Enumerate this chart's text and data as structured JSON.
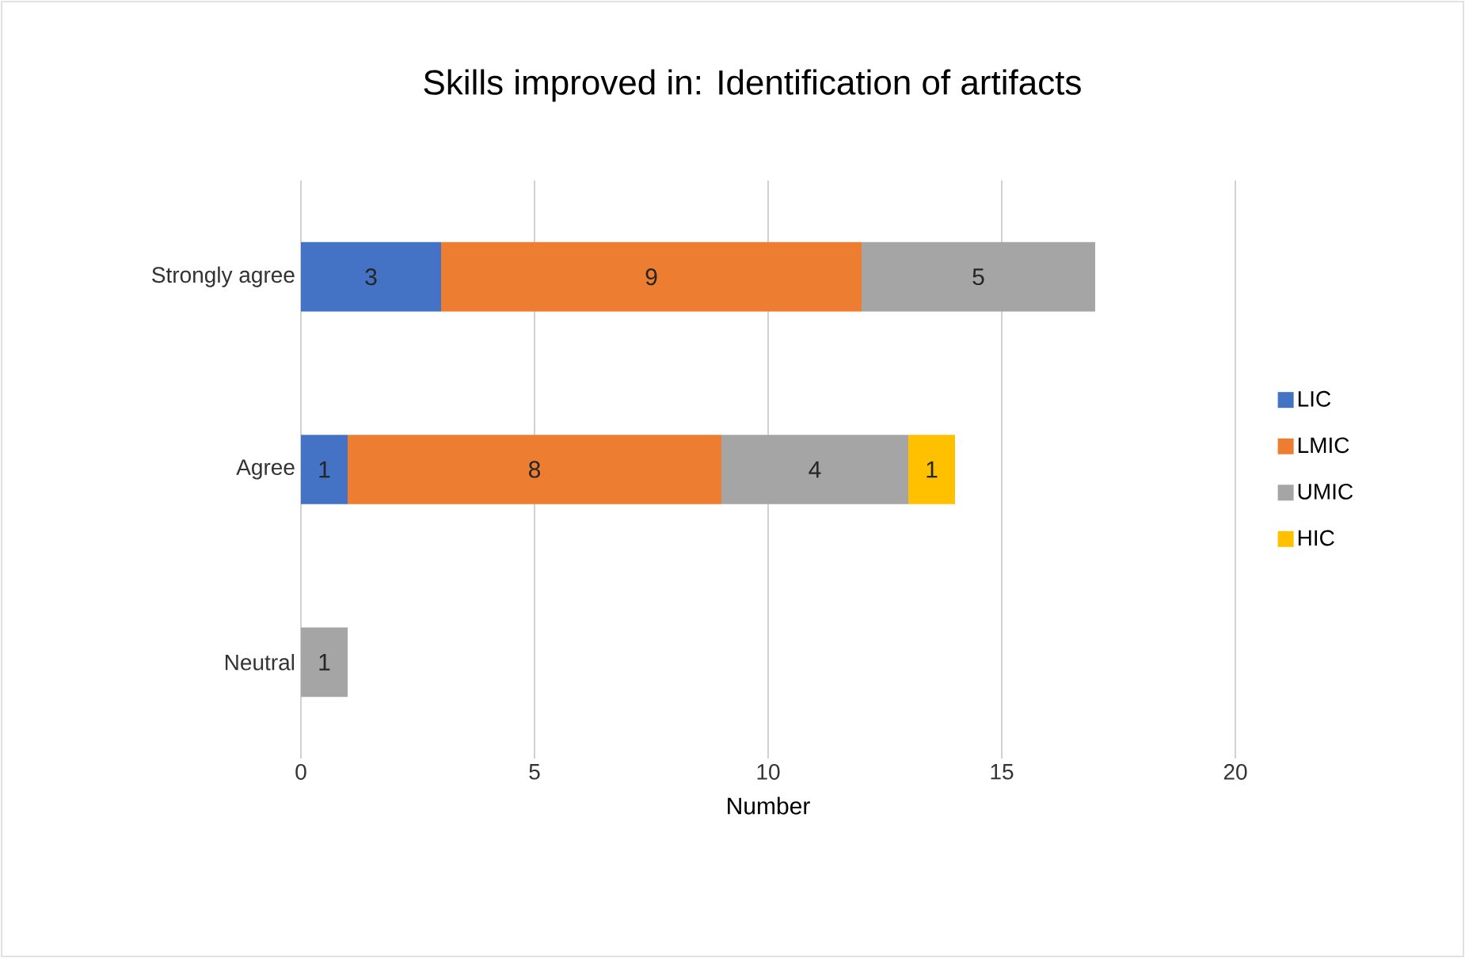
{
  "chart_data": {
    "type": "bar",
    "orientation": "horizontal",
    "stacked": true,
    "title": "Skills improved in: Identification of artifacts",
    "xlabel": "Number",
    "categories": [
      "Strongly agree",
      "Agree",
      "Neutral"
    ],
    "series": [
      {
        "name": "LIC",
        "color": "#4472c4",
        "values": [
          3,
          1,
          null
        ]
      },
      {
        "name": "LMIC",
        "color": "#ed7d31",
        "values": [
          9,
          8,
          null
        ]
      },
      {
        "name": "UMIC",
        "color": "#a5a5a5",
        "values": [
          5,
          4,
          1
        ]
      },
      {
        "name": "HIC",
        "color": "#ffc000",
        "values": [
          null,
          1,
          null
        ]
      }
    ],
    "xlim": [
      0,
      20
    ],
    "xticks": [
      0,
      5,
      10,
      15,
      20
    ],
    "grid": "x",
    "legend": "right",
    "data_labels": true
  }
}
